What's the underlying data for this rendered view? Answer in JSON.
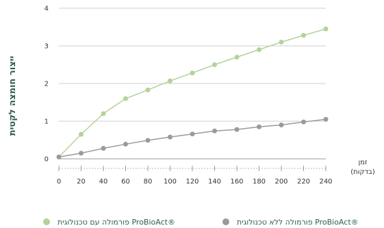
{
  "chart_data": {
    "type": "line",
    "ylabel": "ייצור חומצה לקטית",
    "xlabel_line1": "זמן",
    "xlabel_line2": "(בדקות)",
    "xlim": [
      0,
      240
    ],
    "ylim": [
      0,
      4
    ],
    "x_ticks": [
      0,
      20,
      40,
      60,
      80,
      100,
      120,
      140,
      160,
      180,
      200,
      220,
      240
    ],
    "y_ticks": [
      0,
      1,
      2,
      3,
      4
    ],
    "grid": true,
    "legend_position": "bottom",
    "series": [
      {
        "name": "פורמולה עם טכנולוגית ProBioAct®",
        "color": "#b3d29a",
        "x": [
          0,
          20,
          40,
          60,
          80,
          100,
          120,
          140,
          160,
          180,
          200,
          220,
          240
        ],
        "y": [
          0.05,
          0.65,
          1.2,
          1.6,
          1.83,
          2.07,
          2.28,
          2.5,
          2.7,
          2.9,
          3.1,
          3.28,
          3.45
        ]
      },
      {
        "name": "פורמולה ללא טכנולוגית ProBioAct®",
        "color": "#9a9a9a",
        "x": [
          0,
          20,
          40,
          60,
          80,
          100,
          120,
          140,
          160,
          180,
          200,
          220,
          240
        ],
        "y": [
          0.05,
          0.15,
          0.28,
          0.39,
          0.49,
          0.58,
          0.66,
          0.74,
          0.78,
          0.85,
          0.9,
          0.98,
          1.05
        ]
      }
    ]
  }
}
